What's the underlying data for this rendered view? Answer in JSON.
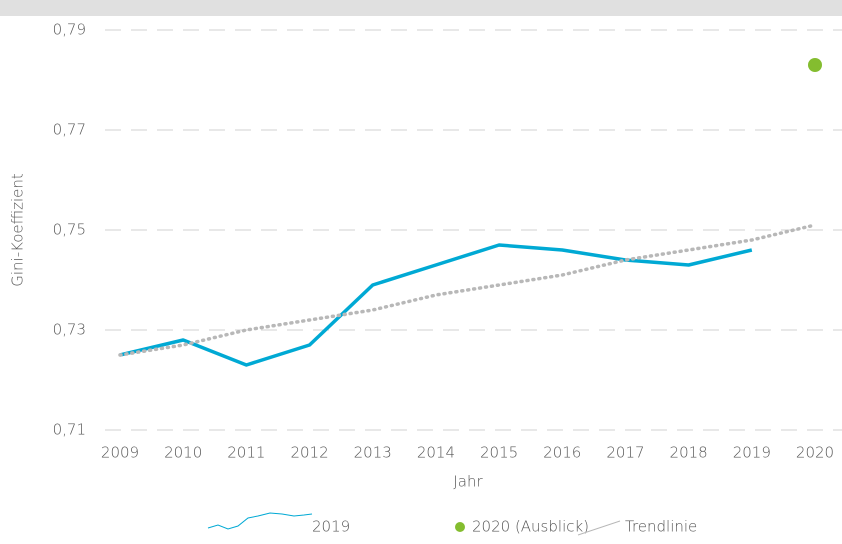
{
  "chart_data": {
    "type": "line",
    "x_label": "Jahr",
    "y_label": "Gini-Koeffizient",
    "categories": [
      "2009",
      "2010",
      "2011",
      "2012",
      "2013",
      "2014",
      "2015",
      "2016",
      "2017",
      "2018",
      "2019",
      "2020"
    ],
    "ylim": [
      0.71,
      0.79
    ],
    "yticks": [
      {
        "value": 0.71,
        "label": "0,71"
      },
      {
        "value": 0.73,
        "label": "0,73"
      },
      {
        "value": 0.75,
        "label": "0,75"
      },
      {
        "value": 0.77,
        "label": "0,77"
      },
      {
        "value": 0.79,
        "label": "0,79"
      }
    ],
    "grid": true,
    "legend": "bottom",
    "series": [
      {
        "name": "2019",
        "color": "#00a9d4",
        "style": "solid",
        "values": [
          0.725,
          0.728,
          0.723,
          0.727,
          0.739,
          0.743,
          0.747,
          0.746,
          0.744,
          0.743,
          0.746,
          null
        ]
      },
      {
        "name": "2020 (Ausblick)",
        "color": "#84bd2f",
        "style": "marker",
        "values": [
          null,
          null,
          null,
          null,
          null,
          null,
          null,
          null,
          null,
          null,
          null,
          0.783
        ]
      },
      {
        "name": "Trendlinie",
        "color": "#b8b8b8",
        "style": "dotted",
        "values": [
          0.725,
          0.727,
          0.73,
          0.732,
          0.734,
          0.737,
          0.739,
          0.741,
          0.744,
          0.746,
          0.748,
          0.751
        ]
      }
    ]
  }
}
